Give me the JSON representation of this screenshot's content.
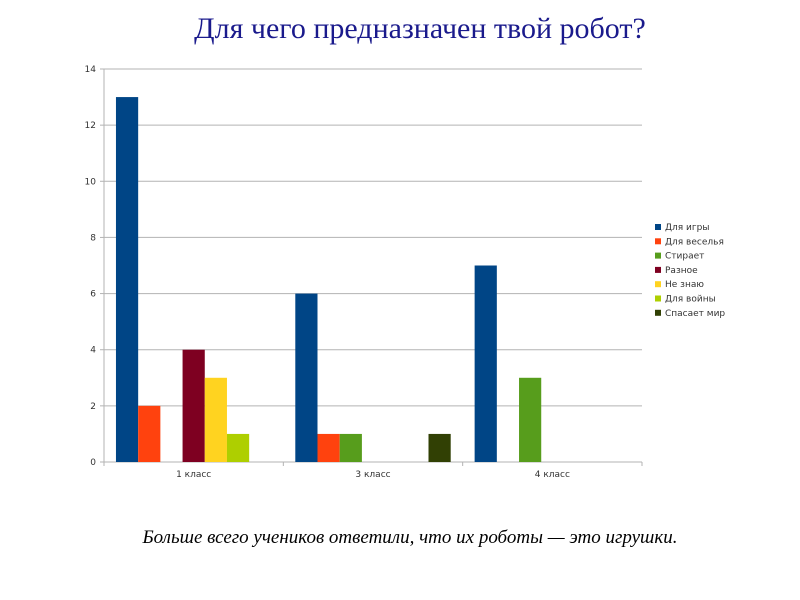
{
  "chart_data": {
    "type": "bar",
    "title": "Для чего предназначен твой робот?",
    "categories": [
      "1 класс",
      "3 класс",
      "4 класс"
    ],
    "series": [
      {
        "name": "Для игры",
        "color": "#004586",
        "values": [
          13,
          6,
          7
        ]
      },
      {
        "name": "Для веселья",
        "color": "#ff420e",
        "values": [
          2,
          1,
          0
        ]
      },
      {
        "name": "Стирает",
        "color": "#579d1c",
        "values": [
          0,
          1,
          3
        ]
      },
      {
        "name": "Разное",
        "color": "#7e0021",
        "values": [
          4,
          0,
          0
        ]
      },
      {
        "name": "Не знаю",
        "color": "#ffd320",
        "values": [
          3,
          0,
          0
        ]
      },
      {
        "name": "Для войны",
        "color": "#aecf00",
        "values": [
          1,
          0,
          0
        ]
      },
      {
        "name": "Спасает мир",
        "color": "#314004",
        "values": [
          0,
          1,
          0
        ]
      }
    ],
    "ylim": [
      0,
      14
    ],
    "yticks": [
      0,
      2,
      4,
      6,
      8,
      10,
      12,
      14
    ],
    "grid": true,
    "legend": "right"
  },
  "caption": "Больше всего учеников ответили, что их роботы — это игрушки."
}
